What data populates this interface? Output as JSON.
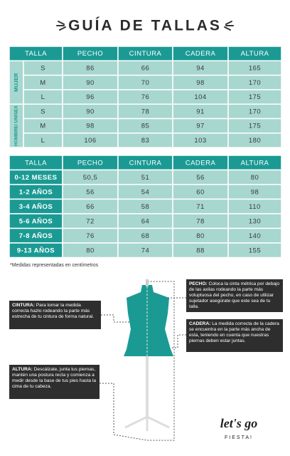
{
  "header": {
    "title": "GUÍA DE TALLAS"
  },
  "table_adult": {
    "columns": [
      "TALLA",
      "PECHO",
      "CINTURA",
      "CADERA",
      "ALTURA"
    ],
    "groups": [
      {
        "label": "MUJER",
        "rows": [
          [
            "S",
            "86",
            "66",
            "94",
            "165"
          ],
          [
            "M",
            "90",
            "70",
            "98",
            "170"
          ],
          [
            "L",
            "96",
            "76",
            "104",
            "175"
          ]
        ]
      },
      {
        "label": "HOMBRE/ UNISEX",
        "rows": [
          [
            "S",
            "90",
            "78",
            "91",
            "170"
          ],
          [
            "M",
            "98",
            "85",
            "97",
            "175"
          ],
          [
            "L",
            "106",
            "83",
            "103",
            "180"
          ]
        ]
      }
    ]
  },
  "table_kids": {
    "columns": [
      "TALLA",
      "PECHO",
      "CINTURA",
      "CADERA",
      "ALTURA"
    ],
    "rows": [
      [
        "0-12 MESES",
        "50,5",
        "51",
        "56",
        "80"
      ],
      [
        "1-2 AÑOS",
        "56",
        "54",
        "60",
        "98"
      ],
      [
        "3-4 AÑOS",
        "66",
        "58",
        "71",
        "110"
      ],
      [
        "5-6 AÑOS",
        "72",
        "64",
        "78",
        "130"
      ],
      [
        "7-8 AÑOS",
        "76",
        "68",
        "80",
        "140"
      ],
      [
        "9-13 AÑOS",
        "80",
        "74",
        "88",
        "155"
      ]
    ]
  },
  "note": "*Medidas representadas en centímetros",
  "annotations": [
    {
      "label": "PECHO:",
      "text": "Coloca la cinta métrica por debajo de las axilas rodeando la parte más voluptuosa del pecho, en caso de utilizar sujetador asegúrate que este sea de tu talla."
    },
    {
      "label": "CINTURA:",
      "text": "Para tomar la medida correcta hazlo rodeando la parte más estrecha de tu cintura de forma natural."
    },
    {
      "label": "CADERA:",
      "text": "La medida correcta de la cadera se encuentra en la parte más ancha de esta, teniendo en cuenta que nuestras piernas deben estar juntas."
    },
    {
      "label": "ALTURA:",
      "text": "Descálzate, junta tus piernas, mantén una postura recta y comienza a medir desde la base de tus pies hasta la cima de tu cabeza."
    }
  ],
  "logo": {
    "main": "let's go",
    "sub": "FIESTA!"
  }
}
